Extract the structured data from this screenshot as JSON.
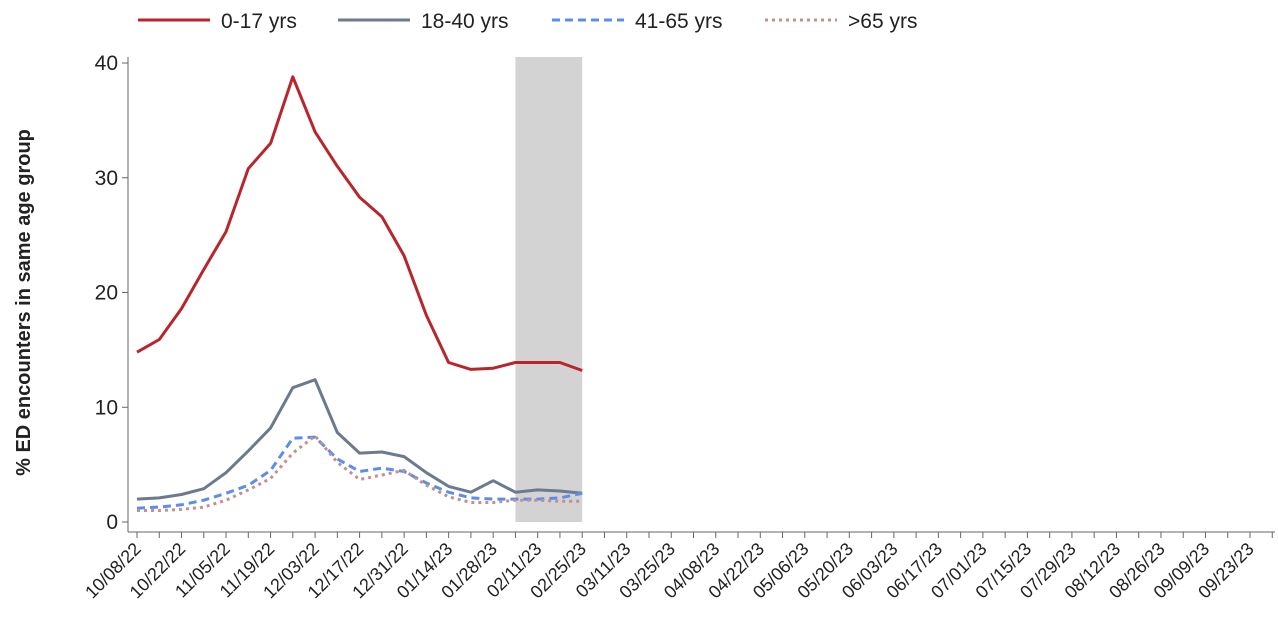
{
  "chart_data": {
    "type": "line",
    "y_label": "% ED encounters in same age group",
    "categories": [
      "10/08/22",
      null,
      "10/22/22",
      null,
      "11/05/22",
      null,
      "11/19/22",
      null,
      "12/03/22",
      null,
      "12/17/22",
      null,
      "12/31/22",
      null,
      "01/14/23",
      null,
      "01/28/23",
      null,
      "02/11/23",
      null,
      "02/25/23",
      null,
      "03/11/23",
      null,
      "03/25/23",
      null,
      "04/08/23",
      null,
      "04/22/23",
      null,
      "05/06/23",
      null,
      "05/20/23",
      null,
      "06/03/23",
      null,
      "06/17/23",
      null,
      "07/01/23",
      null,
      "07/15/23",
      null,
      "07/29/23",
      null,
      "08/12/23",
      null,
      "08/26/23",
      null,
      "09/09/23",
      null,
      "09/23/23",
      null
    ],
    "series": [
      {
        "name": "0-17 yrs",
        "color": "#b8262c",
        "dash": "solid",
        "values": [
          14.8,
          15.9,
          18.6,
          22.0,
          25.3,
          30.8,
          33.0,
          38.8,
          34.0,
          31.0,
          28.3,
          26.6,
          23.2,
          18.0,
          13.9,
          13.3,
          13.4,
          13.9,
          13.9,
          13.9,
          13.2,
          null,
          null,
          null,
          null,
          null,
          null,
          null,
          null,
          null,
          null,
          null,
          null,
          null,
          null,
          null,
          null,
          null,
          null,
          null,
          null,
          null,
          null,
          null,
          null,
          null,
          null,
          null,
          null,
          null,
          null,
          null
        ]
      },
      {
        "name": "18-40 yrs",
        "color": "#6b7a8c",
        "dash": "solid",
        "values": [
          2.0,
          2.1,
          2.4,
          2.9,
          4.3,
          6.2,
          8.2,
          11.7,
          12.4,
          7.8,
          6.0,
          6.1,
          5.7,
          4.3,
          3.1,
          2.6,
          3.6,
          2.6,
          2.8,
          2.7,
          2.5,
          null,
          null,
          null,
          null,
          null,
          null,
          null,
          null,
          null,
          null,
          null,
          null,
          null,
          null,
          null,
          null,
          null,
          null,
          null,
          null,
          null,
          null,
          null,
          null,
          null,
          null,
          null,
          null,
          null,
          null,
          null
        ]
      },
      {
        "name": "41-65 yrs",
        "color": "#5b8ee8",
        "dash": "dashed",
        "values": [
          1.2,
          1.3,
          1.5,
          1.9,
          2.5,
          3.2,
          4.5,
          7.3,
          7.4,
          5.5,
          4.4,
          4.7,
          4.4,
          3.4,
          2.6,
          2.1,
          2.0,
          2.0,
          2.0,
          2.1,
          2.5,
          null,
          null,
          null,
          null,
          null,
          null,
          null,
          null,
          null,
          null,
          null,
          null,
          null,
          null,
          null,
          null,
          null,
          null,
          null,
          null,
          null,
          null,
          null,
          null,
          null,
          null,
          null,
          null,
          null,
          null,
          null
        ]
      },
      {
        "name": ">65 yrs",
        "color": "#c48f8f",
        "dash": "dotted",
        "values": [
          1.0,
          1.0,
          1.1,
          1.3,
          1.9,
          2.8,
          3.8,
          6.0,
          7.5,
          5.2,
          3.7,
          4.1,
          4.5,
          3.2,
          2.2,
          1.7,
          1.7,
          1.9,
          1.9,
          1.8,
          1.8,
          null,
          null,
          null,
          null,
          null,
          null,
          null,
          null,
          null,
          null,
          null,
          null,
          null,
          null,
          null,
          null,
          null,
          null,
          null,
          null,
          null,
          null,
          null,
          null,
          null,
          null,
          null,
          null,
          null,
          null,
          null
        ]
      }
    ],
    "highlight_range": [
      17,
      20
    ],
    "highlight_color": "#d3d3d3",
    "ylim": [
      0,
      40
    ],
    "yticks": [
      0,
      10,
      20,
      30,
      40
    ],
    "grid": false,
    "legend": "top"
  }
}
